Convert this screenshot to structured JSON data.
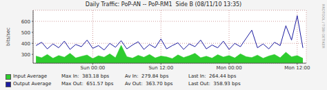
{
  "chart_data": {
    "type": "line",
    "title": "Daily Traffic: PoP-AN -- PoP-RM1  Side B (08/11/10 13:35)",
    "y_label": "bits/sec",
    "annotations": [
      "RRDTOOL / TOBI OETIKER"
    ],
    "x": [
      -10,
      -9,
      -8,
      -7,
      -6,
      -5,
      -4,
      -3,
      -2,
      -1,
      0,
      1,
      2,
      3,
      4,
      5,
      6,
      7,
      8,
      9,
      10,
      11,
      12,
      13,
      14,
      15,
      16,
      17,
      18,
      19,
      20,
      21,
      22,
      23,
      24,
      25,
      26,
      27,
      28,
      29,
      30,
      31,
      32,
      33,
      34,
      35,
      36,
      37
    ],
    "xlim": [
      -10.5,
      37.6
    ],
    "xticks": [
      {
        "value": 0,
        "label": "Sun 00:00"
      },
      {
        "value": 12,
        "label": "Sun 12:00"
      },
      {
        "value": 24,
        "label": "Mon 00:00"
      },
      {
        "value": 36,
        "label": "Mon 12:00"
      }
    ],
    "ylim": [
      220,
      700
    ],
    "yticks": [
      300,
      400,
      500,
      600
    ],
    "grid": true,
    "series": [
      {
        "name": "Input Average",
        "type": "area",
        "color": "#2ecc2e",
        "stats": [
          "Max In:  383.18 bps",
          "Av In:  279.84 bps",
          "Last In:  264.44 bps"
        ],
        "values": [
          285,
          270,
          300,
          265,
          290,
          275,
          310,
          268,
          282,
          295,
          262,
          288,
          275,
          305,
          270,
          383.18,
          280,
          266,
          292,
          274,
          300,
          268,
          285,
          278,
          262,
          296,
          272,
          288,
          310,
          270,
          284,
          266,
          298,
          276,
          290,
          268,
          305,
          280,
          272,
          294,
          265,
          286,
          300,
          270,
          320,
          278,
          290,
          264.44
        ]
      },
      {
        "name": "Output Average",
        "type": "line",
        "color": "#1a1aa0",
        "stats": [
          "Max Out:  651.57 bps",
          "Av Out:  363.70 bps",
          "Last Out:  358.93 bps"
        ],
        "values": [
          380,
          410,
          350,
          395,
          360,
          420,
          345,
          390,
          370,
          430,
          355,
          380,
          340,
          400,
          365,
          425,
          350,
          385,
          415,
          345,
          390,
          360,
          440,
          350,
          380,
          405,
          345,
          395,
          370,
          430,
          350,
          385,
          360,
          420,
          345,
          400,
          370,
          445,
          520,
          360,
          395,
          350,
          410,
          380,
          560,
          430,
          651.57,
          358.93
        ]
      }
    ]
  }
}
